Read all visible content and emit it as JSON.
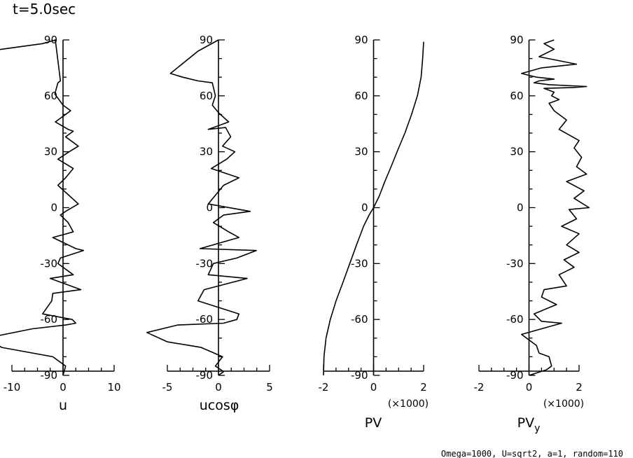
{
  "title": "t=5.0sec",
  "footer": "Omega=1000, U=sqrt2, a=1, random=110",
  "chart_data": [
    {
      "type": "line",
      "xlabel": "u",
      "ylabel": "",
      "multiplier": "",
      "xlim": [
        -10,
        10
      ],
      "ylim": [
        -90,
        90
      ],
      "xticks": [
        -10,
        0,
        10
      ],
      "yticks": [
        -90,
        -60,
        -30,
        0,
        30,
        60,
        90
      ],
      "x_tick_labels": [
        "-10",
        "0",
        "10"
      ],
      "y_tick_labels": [
        "-90",
        "-60",
        "-30",
        "0",
        "30",
        "60",
        "90"
      ],
      "series": [
        {
          "name": "u",
          "x": [
            -14,
            -12,
            -4,
            -1.5,
            -0.5,
            -1,
            -1.6,
            0,
            1.5,
            -1.5,
            1,
            2,
            0.5,
            3,
            1.2,
            -1,
            2,
            0.5,
            -1,
            3,
            0.5,
            -0.5,
            1,
            2,
            -2,
            2.5,
            4,
            -0.5,
            -1,
            2,
            -2.5,
            3.5,
            -2,
            -2.2,
            -4,
            1.8,
            2.5,
            0.5,
            -6,
            -15,
            -12,
            -2,
            0.5,
            0
          ],
          "y": [
            84,
            85,
            88,
            90,
            68,
            67,
            61,
            55,
            52,
            46,
            42,
            41,
            38,
            33,
            30,
            26,
            21,
            16,
            12,
            2,
            -2,
            -4,
            -8,
            -13,
            -16,
            -22,
            -23,
            -27,
            -30,
            -36,
            -38,
            -44,
            -46,
            -50,
            -57,
            -60,
            -62,
            -63,
            -65,
            -70,
            -75,
            -80,
            -85,
            -90
          ]
        }
      ]
    },
    {
      "type": "line",
      "xlabel": "ucosφ",
      "ylabel": "",
      "multiplier": "",
      "xlim": [
        -5,
        5
      ],
      "ylim": [
        -90,
        90
      ],
      "xticks": [
        -5,
        0,
        5
      ],
      "yticks": [
        -90,
        -60,
        -30,
        0,
        30,
        60,
        90
      ],
      "x_tick_labels": [
        "-5",
        "0",
        "5"
      ],
      "y_tick_labels": [
        "-90",
        "-60",
        "-30",
        "0",
        "30",
        "60",
        "90"
      ],
      "series": [
        {
          "name": "ucosφ",
          "x": [
            0,
            -2,
            -4.7,
            -3.5,
            -2,
            -0.6,
            -0.3,
            -0.6,
            0,
            1,
            -1,
            0.7,
            1.2,
            0.4,
            1.6,
            0.8,
            -0.7,
            2,
            0.5,
            -1,
            3.1,
            0.5,
            -0.5,
            1,
            2,
            -1.8,
            3.7,
            1.8,
            -0.5,
            -1,
            2.8,
            -1.4,
            -1.6,
            -2,
            2,
            1.8,
            0.5,
            -4,
            -7,
            -5,
            -1.7,
            0.4,
            -0.3,
            0.5,
            0
          ],
          "y": [
            90,
            84,
            72,
            70,
            68,
            67,
            60,
            55,
            51,
            46,
            42,
            43,
            38,
            33,
            30,
            26,
            21,
            16,
            12,
            2,
            -2,
            -4,
            -8,
            -13,
            -16,
            -22,
            -23,
            -27,
            -30,
            -36,
            -38,
            -44,
            -46,
            -50,
            -57,
            -60,
            -62,
            -63,
            -67,
            -72,
            -75,
            -80,
            -85,
            -88,
            -90
          ]
        }
      ]
    },
    {
      "type": "line",
      "xlabel": "PV",
      "ylabel": "",
      "multiplier": "(×1000)",
      "xlim": [
        -2,
        2
      ],
      "ylim": [
        -90,
        90
      ],
      "xticks": [
        -2,
        0,
        2
      ],
      "yticks": [
        -90,
        -60,
        -30,
        0,
        30,
        60,
        90
      ],
      "x_tick_labels": [
        "-2",
        "0",
        "2"
      ],
      "y_tick_labels": [
        "-90",
        "-60",
        "-30",
        "0",
        "30",
        "60",
        "90"
      ],
      "series": [
        {
          "name": "PV",
          "x": [
            -2,
            -1.98,
            -1.9,
            -1.73,
            -1.5,
            -1.22,
            -0.95,
            -0.68,
            -0.4,
            -0.18,
            0,
            0.22,
            0.45,
            0.7,
            0.97,
            1.25,
            1.52,
            1.75,
            1.9,
            1.96,
            2
          ],
          "y": [
            -90,
            -80,
            -70,
            -60,
            -50,
            -40,
            -30,
            -20,
            -10,
            -4,
            0,
            6,
            14,
            22,
            31,
            40,
            50,
            60,
            70,
            80,
            89
          ]
        }
      ]
    },
    {
      "type": "line",
      "xlabel": "PVy",
      "ylabel": "",
      "multiplier": "(×1000)",
      "xlim": [
        -2,
        2
      ],
      "ylim": [
        -90,
        90
      ],
      "xticks": [
        -2,
        0,
        2
      ],
      "yticks": [
        -90,
        -60,
        -30,
        0,
        30,
        60,
        90
      ],
      "x_tick_labels": [
        "-2",
        "0",
        "2"
      ],
      "y_tick_labels": [
        "-90",
        "-60",
        "-30",
        "0",
        "30",
        "60",
        "90"
      ],
      "series": [
        {
          "name": "PVy",
          "x": [
            0,
            0.7,
            0.9,
            0.8,
            0.4,
            0.3,
            -0.3,
            1.3,
            0.5,
            0.2,
            1.1,
            0.5,
            0.6,
            1.5,
            1.2,
            1.8,
            1.4,
            2.0,
            1.5,
            2.0,
            1.3,
            1.9,
            1.6,
            2.4,
            1.8,
            2.2,
            1.5,
            2.3,
            1.9,
            2.1,
            1.8,
            2.0,
            1.2,
            1.5,
            1.0,
            0.8,
            1.2,
            0.9,
            1.0,
            0.6,
            1.8,
            2.3,
            0.8,
            0.2,
            0.4,
            1.0,
            0.3,
            -0.3,
            0.5,
            1.9,
            0.4,
            1.0,
            0.6,
            1.0
          ],
          "y": [
            -90,
            -87,
            -85,
            -80,
            -78,
            -74,
            -68,
            -62,
            -61,
            -57,
            -52,
            -48,
            -44,
            -42,
            -36,
            -32,
            -28,
            -24,
            -20,
            -14,
            -10,
            -6,
            -1,
            0,
            5,
            9,
            14,
            18,
            22,
            27,
            32,
            36,
            42,
            47,
            52,
            56,
            58,
            60,
            62,
            64,
            64.5,
            65,
            66,
            67,
            68,
            69,
            70,
            72,
            75,
            77,
            81,
            85,
            88,
            90
          ]
        }
      ]
    }
  ]
}
